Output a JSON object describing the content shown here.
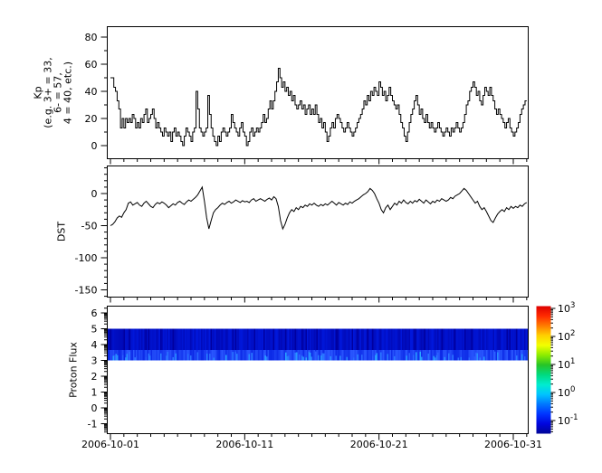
{
  "figure": {
    "background": "#ffffff",
    "axis_color": "#000000"
  },
  "x_axis": {
    "tick_labels": [
      "2006-10-01",
      "2006-10-11",
      "2006-10-21",
      "2006-10-31"
    ],
    "major_tick_days": [
      1,
      11,
      21,
      31
    ],
    "minor_tick_interval_days": 1,
    "range_days": [
      0.76,
      32.12
    ]
  },
  "chart_data": [
    {
      "type": "line",
      "name": "kp-index",
      "ylabel_lines": [
        "Kp",
        "(e.g. 3+ = 33,",
        "6- = 57,",
        "4 = 40, etc.)"
      ],
      "step": true,
      "x_start_day": 1,
      "x_step_days": 0.125,
      "y_major_ticks": [
        0,
        20,
        40,
        60,
        80
      ],
      "y_minor_interval": 10,
      "ylim": [
        -9.7,
        87.7
      ],
      "line_color": "#000000",
      "values": [
        50,
        50,
        43,
        40,
        33,
        27,
        13,
        20,
        13,
        20,
        17,
        20,
        17,
        23,
        20,
        13,
        17,
        13,
        20,
        17,
        23,
        27,
        17,
        20,
        23,
        27,
        20,
        13,
        17,
        13,
        10,
        7,
        13,
        10,
        7,
        10,
        3,
        10,
        13,
        7,
        10,
        7,
        3,
        0,
        7,
        13,
        10,
        7,
        3,
        10,
        13,
        40,
        27,
        13,
        10,
        7,
        10,
        13,
        37,
        23,
        13,
        7,
        3,
        0,
        7,
        3,
        10,
        13,
        10,
        7,
        10,
        13,
        23,
        17,
        13,
        10,
        7,
        13,
        17,
        10,
        7,
        0,
        3,
        10,
        13,
        7,
        10,
        13,
        10,
        13,
        17,
        23,
        17,
        20,
        27,
        33,
        27,
        33,
        40,
        47,
        57,
        50,
        43,
        47,
        40,
        43,
        37,
        40,
        33,
        37,
        30,
        27,
        30,
        33,
        27,
        30,
        23,
        27,
        30,
        23,
        27,
        23,
        30,
        23,
        17,
        20,
        13,
        17,
        10,
        3,
        7,
        13,
        17,
        13,
        20,
        23,
        20,
        17,
        13,
        10,
        13,
        17,
        13,
        10,
        7,
        10,
        13,
        17,
        20,
        23,
        27,
        33,
        30,
        37,
        33,
        40,
        37,
        43,
        40,
        37,
        47,
        43,
        37,
        40,
        33,
        37,
        43,
        37,
        33,
        30,
        27,
        30,
        23,
        17,
        13,
        7,
        3,
        10,
        17,
        23,
        27,
        33,
        37,
        30,
        23,
        27,
        20,
        17,
        23,
        17,
        13,
        17,
        13,
        10,
        13,
        17,
        13,
        10,
        7,
        10,
        13,
        10,
        7,
        13,
        10,
        13,
        17,
        13,
        10,
        13,
        17,
        23,
        30,
        33,
        40,
        43,
        47,
        43,
        37,
        40,
        33,
        30,
        37,
        43,
        40,
        37,
        43,
        37,
        33,
        27,
        23,
        27,
        23,
        20,
        17,
        13,
        17,
        20,
        13,
        10,
        7,
        10,
        13,
        17,
        23,
        27,
        30,
        33
      ]
    },
    {
      "type": "line",
      "name": "dst-index",
      "ylabel": "DST",
      "x_start_day": 1,
      "x_step_days": 0.166667,
      "y_major_ticks": [
        0,
        -50,
        -100,
        -150
      ],
      "y_minor_interval": 10,
      "ylim": [
        -161,
        43
      ],
      "line_color": "#000000",
      "values": [
        -50,
        -48,
        -44,
        -38,
        -35,
        -37,
        -30,
        -25,
        -15,
        -13,
        -18,
        -16,
        -14,
        -18,
        -20,
        -15,
        -12,
        -16,
        -20,
        -22,
        -17,
        -14,
        -16,
        -13,
        -15,
        -18,
        -22,
        -19,
        -16,
        -18,
        -14,
        -12,
        -15,
        -17,
        -13,
        -10,
        -12,
        -9,
        -6,
        -2,
        4,
        10,
        -12,
        -38,
        -55,
        -42,
        -30,
        -25,
        -22,
        -18,
        -15,
        -17,
        -14,
        -12,
        -15,
        -13,
        -10,
        -12,
        -14,
        -11,
        -13,
        -12,
        -14,
        -10,
        -8,
        -12,
        -10,
        -8,
        -10,
        -12,
        -9,
        -7,
        -10,
        -5,
        -8,
        -20,
        -42,
        -55,
        -48,
        -38,
        -30,
        -25,
        -28,
        -22,
        -25,
        -20,
        -22,
        -18,
        -20,
        -16,
        -18,
        -15,
        -18,
        -20,
        -17,
        -19,
        -16,
        -18,
        -15,
        -12,
        -15,
        -18,
        -14,
        -16,
        -18,
        -15,
        -17,
        -13,
        -15,
        -12,
        -10,
        -8,
        -5,
        -2,
        0,
        3,
        8,
        5,
        0,
        -8,
        -15,
        -25,
        -30,
        -22,
        -18,
        -25,
        -20,
        -15,
        -18,
        -12,
        -15,
        -10,
        -14,
        -16,
        -12,
        -15,
        -11,
        -13,
        -9,
        -12,
        -15,
        -10,
        -13,
        -16,
        -12,
        -14,
        -10,
        -12,
        -8,
        -10,
        -12,
        -10,
        -6,
        -8,
        -4,
        -2,
        0,
        4,
        8,
        5,
        0,
        -5,
        -10,
        -15,
        -12,
        -20,
        -25,
        -22,
        -28,
        -35,
        -42,
        -45,
        -38,
        -32,
        -28,
        -25,
        -28,
        -22,
        -25,
        -20,
        -23,
        -20,
        -22,
        -18,
        -20,
        -16,
        -14
      ]
    },
    {
      "type": "heatmap",
      "name": "proton-flux",
      "ylabel": "Proton Flux",
      "y_major_ticks": [
        -1,
        0,
        1,
        2,
        3,
        4,
        5,
        6
      ],
      "y_scale": "log-decades",
      "ylim": [
        -1.63,
        6.43
      ],
      "band": {
        "y_from": 3,
        "y_to": 5,
        "x_from_day": 0.76,
        "x_to_day": 32.12,
        "palette": {
          "dark": "#0000a0",
          "base": "#0018dd",
          "bright": "#2b59ff",
          "highlight": "#27a7ff"
        },
        "noise_seed": 12
      },
      "colorbar": {
        "scale": "log",
        "tick_mantissa": "10",
        "tick_exponents": [
          3,
          2,
          1,
          0,
          -1
        ],
        "gradient_stops_top_to_bottom": [
          "#dd0000",
          "#ff2a00",
          "#ff7c00",
          "#ffd000",
          "#f2ff00",
          "#8cec00",
          "#27c427",
          "#00da80",
          "#00eccf",
          "#00c4ff",
          "#0077ff",
          "#0034ff",
          "#0005dd",
          "#000596"
        ]
      }
    }
  ]
}
